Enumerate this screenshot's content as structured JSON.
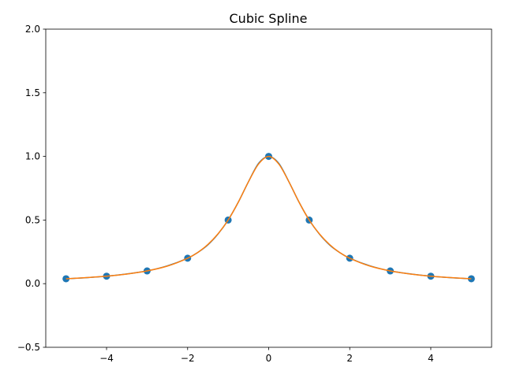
{
  "chart_data": {
    "type": "line",
    "title": "Cubic Spline",
    "xlabel": "",
    "ylabel": "",
    "xlim": [
      -5.5,
      5.5
    ],
    "ylim": [
      -0.5,
      2.0
    ],
    "x_ticks": [
      -4,
      -2,
      0,
      2,
      4
    ],
    "x_tick_labels": [
      "−4",
      "−2",
      "0",
      "2",
      "4"
    ],
    "y_ticks": [
      -0.5,
      0.0,
      0.5,
      1.0,
      1.5,
      2.0
    ],
    "y_tick_labels": [
      "−0.5",
      "0.0",
      "0.5",
      "1.0",
      "1.5",
      "2.0"
    ],
    "grid": false,
    "legend": "none",
    "series": [
      {
        "kind": "scatter",
        "color": "#1f77b4",
        "x": [
          -5,
          -4,
          -3,
          -2,
          -1,
          0,
          1,
          2,
          3,
          4,
          5
        ],
        "y": [
          0.0385,
          0.0588,
          0.1,
          0.2,
          0.5,
          1.0,
          0.5,
          0.2,
          0.1,
          0.0588,
          0.0385
        ]
      },
      {
        "kind": "line",
        "color": "#1f77b4",
        "x": [
          -5,
          -4.5,
          -4,
          -3.5,
          -3,
          -2.5,
          -2,
          -1.75,
          -1.5,
          -1.25,
          -1,
          -0.75,
          -0.5,
          -0.25,
          0,
          0.25,
          0.5,
          0.75,
          1,
          1.25,
          1.5,
          1.75,
          2,
          2.5,
          3,
          3.5,
          4,
          4.5,
          5
        ],
        "y": [
          0.0385,
          0.047,
          0.0588,
          0.0765,
          0.1,
          0.14,
          0.2,
          0.245,
          0.305,
          0.39,
          0.5,
          0.64,
          0.8,
          0.945,
          1.0,
          0.945,
          0.8,
          0.64,
          0.5,
          0.39,
          0.305,
          0.245,
          0.2,
          0.14,
          0.1,
          0.0765,
          0.0588,
          0.047,
          0.0385
        ]
      },
      {
        "kind": "line",
        "color": "#ff7f0e",
        "x": [
          -5,
          -4.5,
          -4,
          -3.5,
          -3,
          -2.5,
          -2,
          -1.75,
          -1.5,
          -1.25,
          -1,
          -0.75,
          -0.5,
          -0.25,
          0,
          0.25,
          0.5,
          0.75,
          1,
          1.25,
          1.5,
          1.75,
          2,
          2.5,
          3,
          3.5,
          4,
          4.5,
          5
        ],
        "y": [
          0.0385,
          0.0475,
          0.0588,
          0.0755,
          0.1,
          0.138,
          0.2,
          0.245,
          0.308,
          0.392,
          0.5,
          0.64,
          0.8,
          0.94,
          1.0,
          0.94,
          0.8,
          0.64,
          0.5,
          0.392,
          0.308,
          0.245,
          0.2,
          0.138,
          0.1,
          0.0755,
          0.0588,
          0.0475,
          0.0385
        ]
      }
    ]
  }
}
